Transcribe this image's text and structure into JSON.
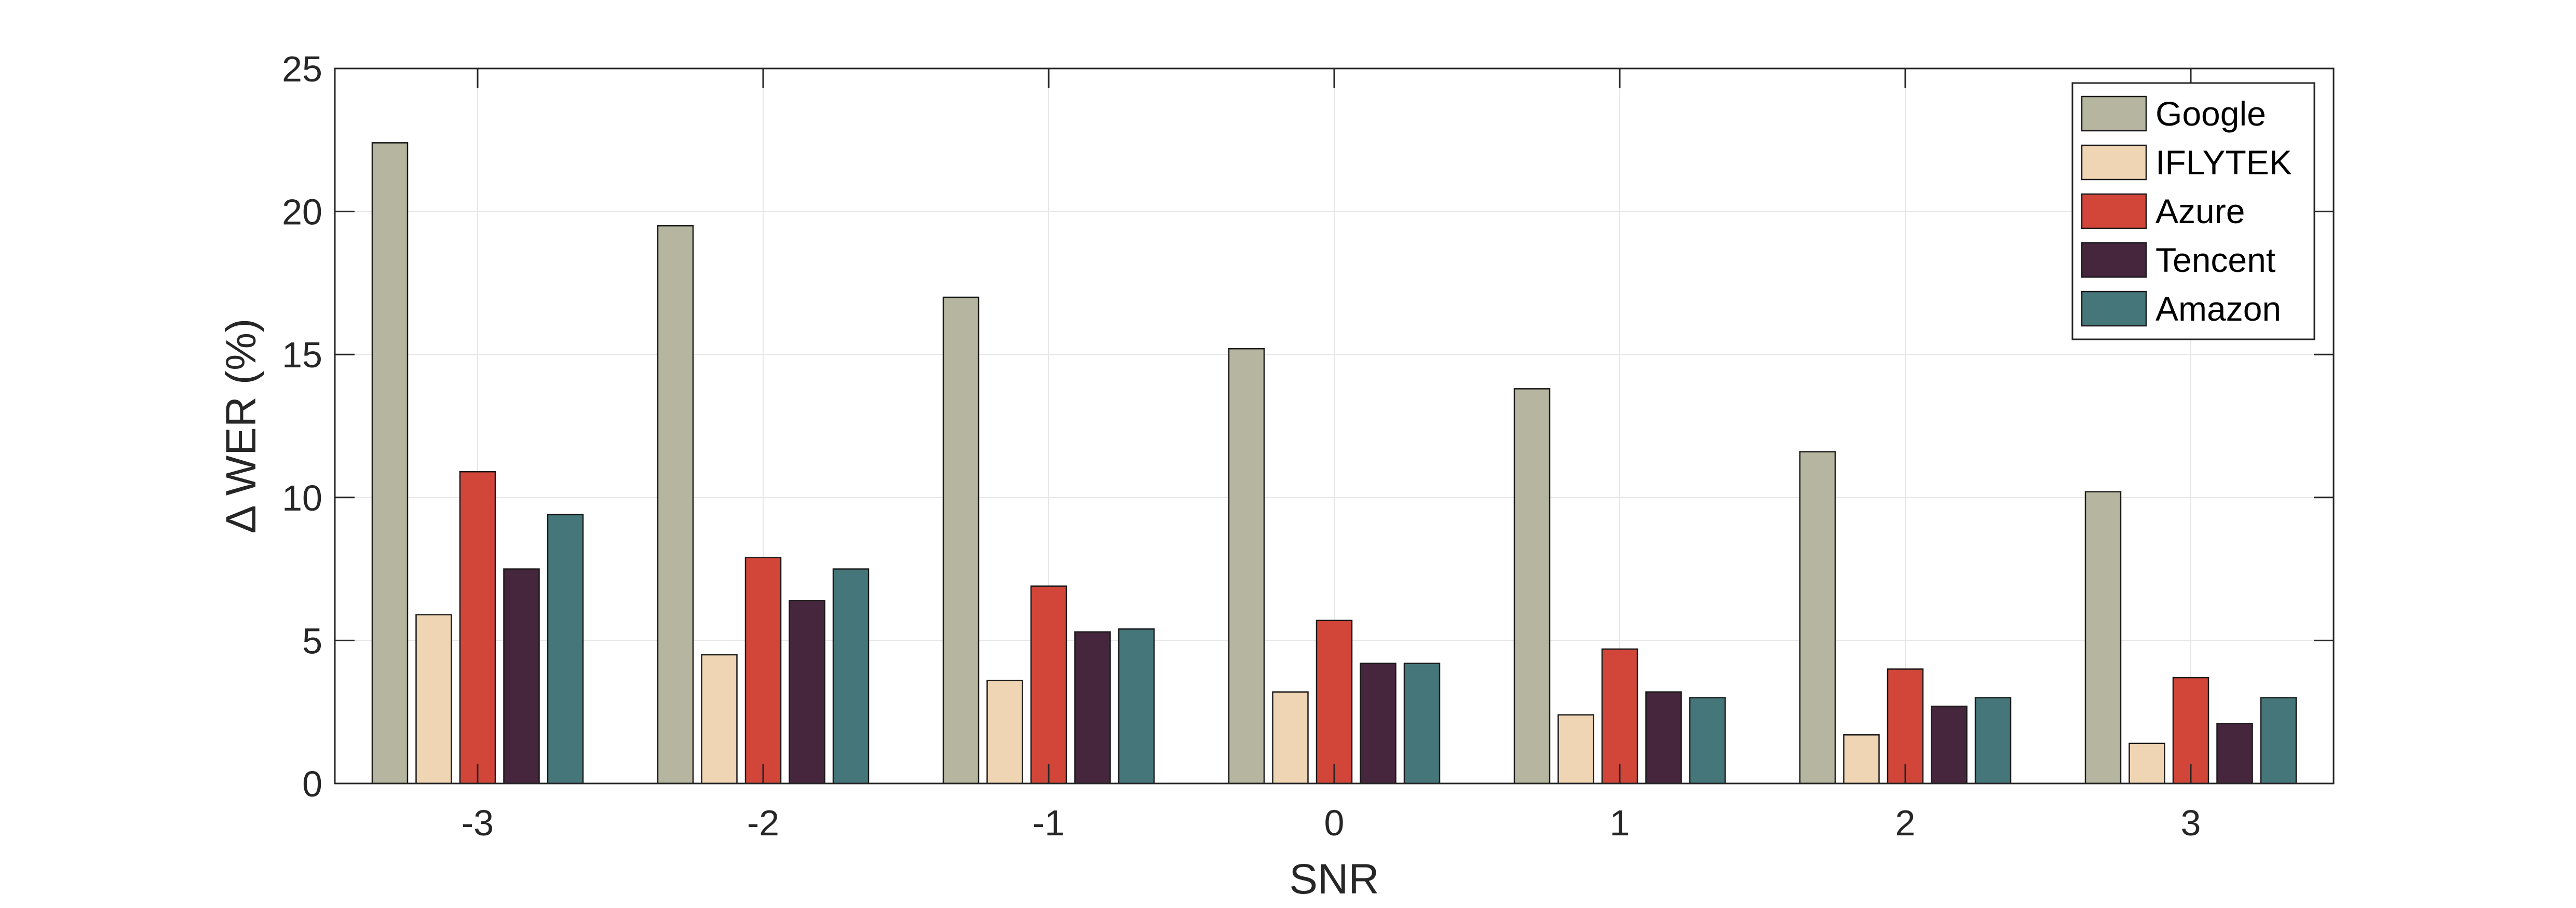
{
  "chart_data": {
    "type": "bar",
    "title": "",
    "xlabel": "SNR",
    "ylabel": "Δ WER (%)",
    "categories": [
      "-3",
      "-2",
      "-1",
      "0",
      "1",
      "2",
      "3"
    ],
    "ylim": [
      0,
      25
    ],
    "yticks": [
      "0",
      "5",
      "10",
      "15",
      "20",
      "25"
    ],
    "grid": true,
    "legend_position": "top-right",
    "series": [
      {
        "name": "Google",
        "color": "#b6b5a0",
        "values": [
          22.4,
          19.5,
          17.0,
          15.2,
          13.8,
          11.6,
          10.2
        ]
      },
      {
        "name": "IFLYTEK",
        "color": "#f0d5b5",
        "values": [
          5.9,
          4.5,
          3.6,
          3.2,
          2.4,
          1.7,
          1.4
        ]
      },
      {
        "name": "Azure",
        "color": "#d2463a",
        "values": [
          10.9,
          7.9,
          6.9,
          5.7,
          4.7,
          4.0,
          3.7
        ]
      },
      {
        "name": "Tencent",
        "color": "#45263d",
        "values": [
          7.5,
          6.4,
          5.3,
          4.2,
          3.2,
          2.7,
          2.1
        ]
      },
      {
        "name": "Amazon",
        "color": "#44767a",
        "values": [
          9.4,
          7.5,
          5.4,
          4.2,
          3.0,
          3.0,
          3.0
        ]
      }
    ]
  }
}
